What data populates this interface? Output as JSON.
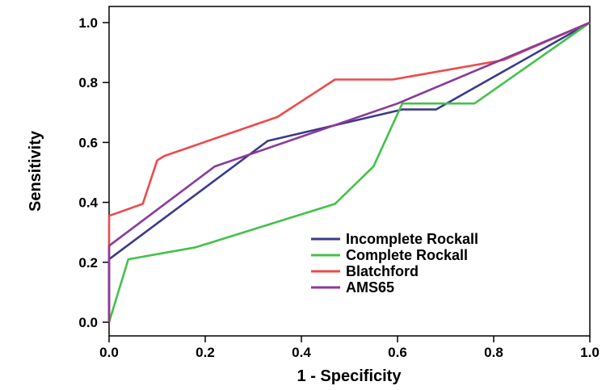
{
  "chart_data": {
    "type": "line",
    "xlabel": "1 - Specificity",
    "ylabel": "Sensitivity",
    "xlim": [
      0,
      1
    ],
    "ylim": [
      0,
      1
    ],
    "x_ticks": [
      "0.0",
      "0.2",
      "0.4",
      "0.6",
      "0.8",
      "1.0"
    ],
    "y_ticks": [
      "0.0",
      "0.2",
      "0.4",
      "0.6",
      "0.8",
      "1.0"
    ],
    "grid": false,
    "legend_position": "bottom-right",
    "series": [
      {
        "name": "Incomplete Rockall",
        "color": "#3a3a8c",
        "points": [
          [
            0,
            0
          ],
          [
            0,
            0.21
          ],
          [
            0.33,
            0.605
          ],
          [
            0.61,
            0.71
          ],
          [
            0.68,
            0.71
          ],
          [
            1,
            1
          ]
        ]
      },
      {
        "name": "Complete Rockall",
        "color": "#44c14a",
        "points": [
          [
            0,
            0
          ],
          [
            0.04,
            0.21
          ],
          [
            0.18,
            0.25
          ],
          [
            0.47,
            0.395
          ],
          [
            0.55,
            0.52
          ],
          [
            0.61,
            0.73
          ],
          [
            0.76,
            0.73
          ],
          [
            1,
            1
          ]
        ]
      },
      {
        "name": "Blatchford",
        "color": "#ee4a4a",
        "points": [
          [
            0,
            0
          ],
          [
            0,
            0.355
          ],
          [
            0.07,
            0.395
          ],
          [
            0.1,
            0.54
          ],
          [
            0.115,
            0.555
          ],
          [
            0.35,
            0.685
          ],
          [
            0.47,
            0.81
          ],
          [
            0.59,
            0.81
          ],
          [
            0.82,
            0.875
          ],
          [
            1,
            1
          ]
        ]
      },
      {
        "name": "AMS65",
        "color": "#8a3a9a",
        "points": [
          [
            0,
            0
          ],
          [
            0,
            0.255
          ],
          [
            0.22,
            0.52
          ],
          [
            0.6,
            0.73
          ],
          [
            1,
            1
          ]
        ]
      }
    ]
  }
}
